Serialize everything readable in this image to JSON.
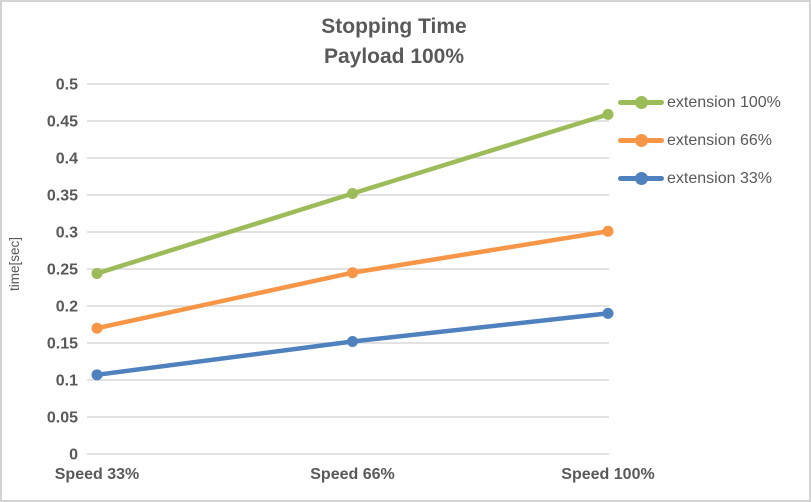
{
  "chart_data": {
    "type": "line",
    "title": "Stopping Time",
    "subtitle": "Payload 100%",
    "categories": [
      "Speed 33%",
      "Speed 66%",
      "Speed 100%"
    ],
    "series": [
      {
        "name": "extension 100%",
        "color": "#9CBB59",
        "values": [
          0.244,
          0.352,
          0.459
        ]
      },
      {
        "name": "extension 66%",
        "color": "#F79646",
        "values": [
          0.17,
          0.245,
          0.301
        ]
      },
      {
        "name": "extension 33%",
        "color": "#4E81BD",
        "values": [
          0.107,
          0.152,
          0.19
        ]
      }
    ],
    "xlabel": "",
    "ylabel": "time[sec]",
    "ylim": [
      0,
      0.5
    ],
    "ytick_step": 0.05,
    "ytick_labels": [
      "0",
      "0.05",
      "0.1",
      "0.15",
      "0.2",
      "0.25",
      "0.3",
      "0.35",
      "0.4",
      "0.45",
      "0.5"
    ],
    "grid": true,
    "legend_position": "right",
    "marker": "circle",
    "colors": {
      "gridline": "#d9d9d9",
      "text": "#595959",
      "frame_border": "#d3d3d3",
      "background": "#ffffff"
    }
  }
}
